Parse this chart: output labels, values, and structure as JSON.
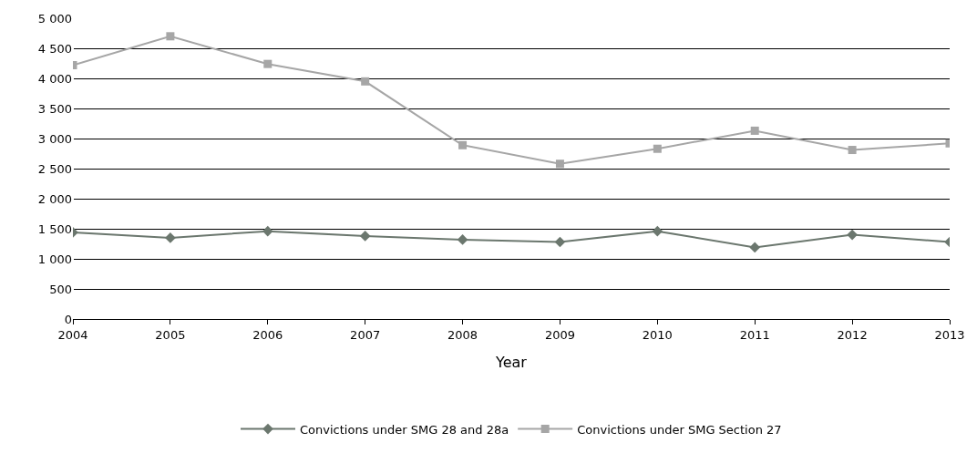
{
  "chart_data": {
    "type": "line",
    "xlabel": "Year",
    "categories": [
      "2004",
      "2005",
      "2006",
      "2007",
      "2008",
      "2009",
      "2010",
      "2011",
      "2012",
      "2013"
    ],
    "series": [
      {
        "name": "Convictions under SMG 28 and 28a",
        "color": "#6b776e",
        "marker": "diamond",
        "values": [
          1440,
          1350,
          1460,
          1380,
          1320,
          1280,
          1460,
          1190,
          1400,
          1280
        ]
      },
      {
        "name": "Convictions under SMG Section 27",
        "color": "#a6a6a6",
        "marker": "square",
        "values": [
          4220,
          4700,
          4240,
          3950,
          2890,
          2580,
          2830,
          3130,
          2810,
          2920
        ]
      }
    ],
    "ylim": [
      0,
      5000
    ],
    "yticks": [
      {
        "value": 0,
        "label": "0"
      },
      {
        "value": 500,
        "label": "500"
      },
      {
        "value": 1000,
        "label": "1 000"
      },
      {
        "value": 1500,
        "label": "1 500"
      },
      {
        "value": 2000,
        "label": "2 000"
      },
      {
        "value": 2500,
        "label": "2 500"
      },
      {
        "value": 3000,
        "label": "3 000"
      },
      {
        "value": 3500,
        "label": "3 500"
      },
      {
        "value": 4000,
        "label": "4 000"
      },
      {
        "value": 4500,
        "label": "4 500"
      },
      {
        "value": 5000,
        "label": "5 000"
      }
    ],
    "grid": "y",
    "legend": "bottom",
    "line_style": "solid"
  }
}
